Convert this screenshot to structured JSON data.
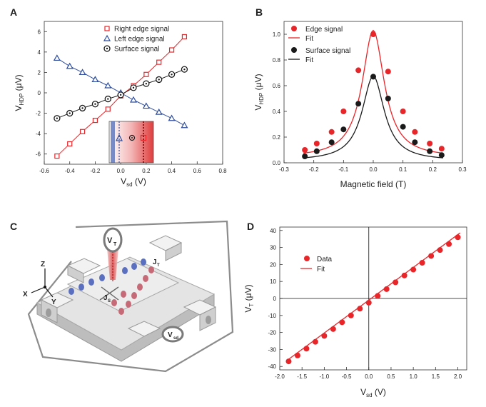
{
  "panels": {
    "a": {
      "letter": "A"
    },
    "b": {
      "letter": "B"
    },
    "c": {
      "letter": "C",
      "labels": {
        "vt": "V",
        "vt_sub": "T",
        "vsd": "V",
        "vsd_sub": "sd",
        "js": "J",
        "js_sub": "S",
        "jt": "J",
        "jt_sub": "T",
        "axis_z": "Z",
        "axis_x": "X",
        "axis_y": "Y"
      }
    },
    "d": {
      "letter": "D"
    }
  },
  "colors": {
    "red": "#e8262a",
    "blue": "#2e4d9c",
    "black": "#1a1a1a",
    "gray": "#b0b0b0"
  },
  "chart_data": [
    {
      "id": "a",
      "type": "line",
      "xlabel": "V",
      "xlabel_sub": "sd",
      "xlabel_unit": " (V)",
      "ylabel": "V",
      "ylabel_sub": "HDP",
      "ylabel_unit": " (μV)",
      "xlim": [
        -0.6,
        0.8
      ],
      "ylim": [
        -7,
        7
      ],
      "xticks": [
        -0.6,
        -0.4,
        -0.2,
        0.0,
        0.2,
        0.4,
        0.6,
        0.8
      ],
      "xtick_labels": [
        "-0.6",
        "-0.4",
        "-0.2",
        "0.0",
        "0.2",
        "0.4",
        "0.6",
        "0.8"
      ],
      "yticks": [
        -6,
        -4,
        -2,
        0,
        2,
        4,
        6
      ],
      "ytick_labels": [
        "-6",
        "-4",
        "-2",
        "0",
        "2",
        "4",
        "6"
      ],
      "x": [
        -0.5,
        -0.4,
        -0.3,
        -0.2,
        -0.1,
        0.0,
        0.1,
        0.2,
        0.3,
        0.4,
        0.5
      ],
      "series": [
        {
          "name": "Right edge signal",
          "marker": "square",
          "color": "#e8262a",
          "values": [
            -6.2,
            -5.0,
            -3.8,
            -2.7,
            -1.6,
            -0.3,
            0.7,
            1.8,
            3.0,
            4.2,
            5.5
          ]
        },
        {
          "name": "Left edge signal",
          "marker": "triangle",
          "color": "#2e4d9c",
          "values": [
            3.4,
            2.6,
            2.0,
            1.3,
            0.7,
            0.0,
            -0.7,
            -1.3,
            -1.9,
            -2.5,
            -3.2
          ]
        },
        {
          "name": "Surface signal",
          "marker": "circle-dot",
          "color": "#1a1a1a",
          "values": [
            -2.5,
            -2.0,
            -1.5,
            -1.1,
            -0.6,
            -0.2,
            0.5,
            0.9,
            1.3,
            1.8,
            2.3
          ]
        }
      ],
      "legend": "top-center"
    },
    {
      "id": "b",
      "type": "scatter",
      "xlabel": "Magnetic field (T)",
      "ylabel": "V",
      "ylabel_sub": "HDP",
      "ylabel_unit": " (μV)",
      "xlim": [
        -0.3,
        0.3
      ],
      "ylim": [
        0.0,
        1.1
      ],
      "xticks": [
        -0.3,
        -0.2,
        -0.1,
        0.0,
        0.1,
        0.2,
        0.3
      ],
      "xtick_labels": [
        "-0.3",
        "-0.2",
        "-0.1",
        "0.0",
        "0.1",
        "0.2",
        "0.3"
      ],
      "yticks": [
        0.0,
        0.2,
        0.4,
        0.6,
        0.8,
        1.0
      ],
      "ytick_labels": [
        "0.0",
        "0.2",
        "0.4",
        "0.6",
        "0.8",
        "1.0"
      ],
      "x": [
        -0.23,
        -0.19,
        -0.14,
        -0.1,
        -0.05,
        0.0,
        0.05,
        0.1,
        0.14,
        0.19,
        0.23
      ],
      "series": [
        {
          "name": "Edge signal",
          "fit_name": "Fit",
          "color": "#e8262a",
          "values": [
            0.1,
            0.15,
            0.24,
            0.4,
            0.72,
            1.0,
            0.71,
            0.4,
            0.24,
            0.15,
            0.11
          ],
          "fit": {
            "amp": 0.99,
            "width": 0.045,
            "offset": 0.04
          }
        },
        {
          "name": "Surface signal",
          "fit_name": "Fit",
          "color": "#1a1a1a",
          "values": [
            0.05,
            0.09,
            0.16,
            0.26,
            0.46,
            0.67,
            0.5,
            0.28,
            0.16,
            0.09,
            0.06
          ],
          "fit": {
            "amp": 0.66,
            "width": 0.045,
            "offset": 0.015
          }
        }
      ],
      "legend": "top-right"
    },
    {
      "id": "d",
      "type": "scatter",
      "xlabel": "V",
      "xlabel_sub": "sd",
      "xlabel_unit": " (V)",
      "ylabel": "V",
      "ylabel_sub": "T",
      "ylabel_unit": " (μV)",
      "xlim": [
        -2.0,
        2.2
      ],
      "ylim": [
        -42,
        42
      ],
      "xticks": [
        -2.0,
        -1.5,
        -1.0,
        -0.5,
        0.0,
        0.5,
        1.0,
        1.5,
        2.0
      ],
      "xtick_labels": [
        "-2.0",
        "-1.5",
        "-1.0",
        "-0.5",
        "0.0",
        "0.5",
        "1.0",
        "1.5",
        "2.0"
      ],
      "yticks": [
        -40,
        -30,
        -20,
        -10,
        0,
        10,
        20,
        30,
        40
      ],
      "ytick_labels": [
        "-40",
        "-30",
        "-20",
        "-10",
        "0",
        "10",
        "20",
        "30",
        "40"
      ],
      "x": [
        -1.8,
        -1.6,
        -1.4,
        -1.2,
        -1.0,
        -0.8,
        -0.6,
        -0.4,
        -0.2,
        0.0,
        0.2,
        0.4,
        0.6,
        0.8,
        1.0,
        1.2,
        1.4,
        1.6,
        1.8,
        2.0
      ],
      "series": [
        {
          "name": "Data",
          "fit_name": "Fit",
          "color": "#e8262a",
          "values": [
            -37,
            -33.5,
            -29.5,
            -25.5,
            -22,
            -18,
            -14,
            -10,
            -6,
            -2.5,
            1.5,
            5.5,
            9.5,
            13.5,
            17,
            21,
            25,
            28.5,
            32,
            36
          ],
          "fit": {
            "slope": 19.3,
            "intercept": -1.0
          }
        }
      ],
      "legend": "top-left"
    }
  ]
}
